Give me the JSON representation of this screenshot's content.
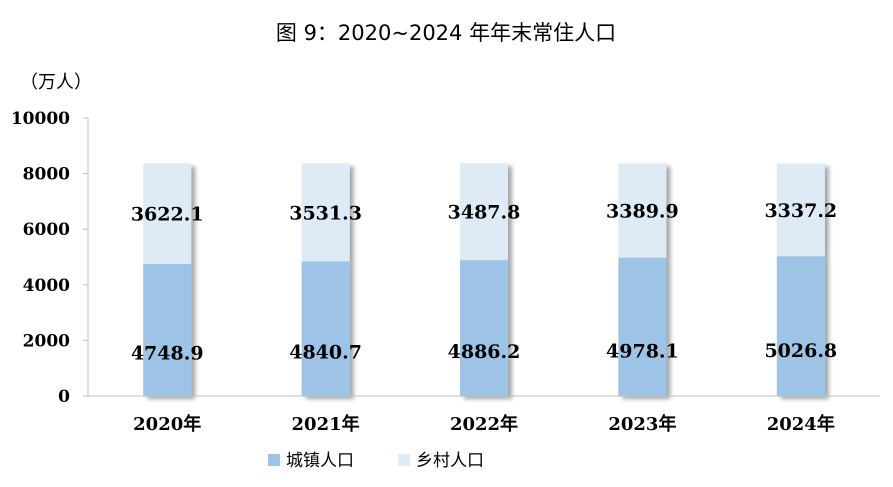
{
  "chart_data": {
    "type": "bar",
    "stacked": true,
    "title": "图 9：2020~2024 年年末常住人口",
    "ylabel": "（万人）",
    "xlabel": "",
    "ylim": [
      0,
      10000
    ],
    "yticks": [
      "0",
      "2000",
      "4000",
      "6000",
      "8000",
      "10000"
    ],
    "categories": [
      "2020年",
      "2021年",
      "2022年",
      "2023年",
      "2024年"
    ],
    "series": [
      {
        "name": "城镇人口",
        "color": "#9dc3e6",
        "values": [
          4748.9,
          4840.7,
          4886.2,
          4978.1,
          5026.8
        ],
        "labels": [
          "4748.9",
          "4840.7",
          "4886.2",
          "4978.1",
          "5026.8"
        ]
      },
      {
        "name": "乡村人口",
        "color": "#deebf7",
        "values": [
          3622.1,
          3531.3,
          3487.8,
          3389.9,
          3337.2
        ],
        "labels": [
          "3622.1",
          "3531.3",
          "3487.8",
          "3389.9",
          "3337.2"
        ]
      }
    ],
    "grid": false,
    "legend_position": "bottom"
  }
}
